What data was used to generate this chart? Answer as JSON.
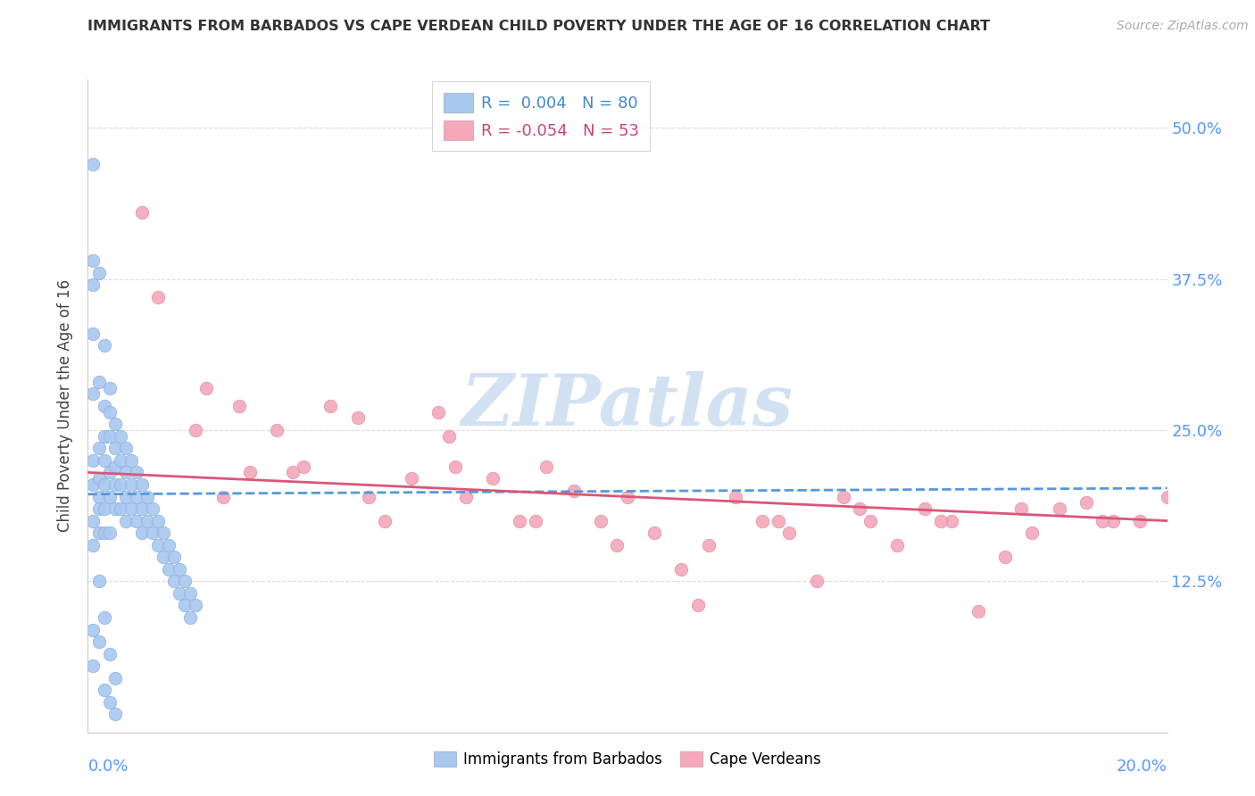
{
  "title": "IMMIGRANTS FROM BARBADOS VS CAPE VERDEAN CHILD POVERTY UNDER THE AGE OF 16 CORRELATION CHART",
  "source": "Source: ZipAtlas.com",
  "ylabel": "Child Poverty Under the Age of 16",
  "ytick_values": [
    0.0,
    0.125,
    0.25,
    0.375,
    0.5
  ],
  "ytick_labels": [
    "",
    "12.5%",
    "25.0%",
    "37.5%",
    "50.0%"
  ],
  "xlim": [
    0.0,
    0.2
  ],
  "ylim": [
    0.0,
    0.54
  ],
  "barbados_color": "#a8c8f0",
  "barbados_edge_color": "#88aadd",
  "cape_verde_color": "#f4a8b8",
  "cape_verde_edge_color": "#dd88aa",
  "barbados_line_color": "#5599dd",
  "cape_verde_line_color": "#dd5577",
  "barbados_R": 0.004,
  "barbados_N": 80,
  "cape_verde_R": -0.054,
  "cape_verde_N": 53,
  "watermark_color": "#ccddf0",
  "grid_color": "#cccccc",
  "title_color": "#333333",
  "source_color": "#aaaaaa",
  "tick_color": "#5599ff",
  "barbados_legend_color": "#4488cc",
  "cape_verde_legend_color": "#cc4477",
  "barbados_x": [
    0.001,
    0.001,
    0.001,
    0.001,
    0.001,
    0.001,
    0.001,
    0.001,
    0.001,
    0.002,
    0.002,
    0.002,
    0.002,
    0.002,
    0.002,
    0.002,
    0.003,
    0.003,
    0.003,
    0.003,
    0.003,
    0.003,
    0.003,
    0.004,
    0.004,
    0.004,
    0.004,
    0.004,
    0.004,
    0.005,
    0.005,
    0.005,
    0.005,
    0.005,
    0.006,
    0.006,
    0.006,
    0.006,
    0.007,
    0.007,
    0.007,
    0.007,
    0.008,
    0.008,
    0.008,
    0.009,
    0.009,
    0.009,
    0.01,
    0.01,
    0.01,
    0.011,
    0.011,
    0.012,
    0.012,
    0.013,
    0.013,
    0.014,
    0.014,
    0.015,
    0.015,
    0.016,
    0.016,
    0.017,
    0.017,
    0.018,
    0.018,
    0.019,
    0.019,
    0.02,
    0.001,
    0.002,
    0.003,
    0.004,
    0.005,
    0.001,
    0.002,
    0.003,
    0.004,
    0.005
  ],
  "barbados_y": [
    0.47,
    0.39,
    0.37,
    0.33,
    0.28,
    0.225,
    0.205,
    0.175,
    0.155,
    0.38,
    0.29,
    0.235,
    0.21,
    0.195,
    0.185,
    0.165,
    0.32,
    0.27,
    0.245,
    0.225,
    0.205,
    0.185,
    0.165,
    0.285,
    0.265,
    0.245,
    0.215,
    0.195,
    0.165,
    0.255,
    0.235,
    0.22,
    0.205,
    0.185,
    0.245,
    0.225,
    0.205,
    0.185,
    0.235,
    0.215,
    0.195,
    0.175,
    0.225,
    0.205,
    0.185,
    0.215,
    0.195,
    0.175,
    0.205,
    0.185,
    0.165,
    0.195,
    0.175,
    0.185,
    0.165,
    0.175,
    0.155,
    0.165,
    0.145,
    0.155,
    0.135,
    0.145,
    0.125,
    0.135,
    0.115,
    0.125,
    0.105,
    0.115,
    0.095,
    0.105,
    0.085,
    0.125,
    0.095,
    0.065,
    0.045,
    0.055,
    0.075,
    0.035,
    0.025,
    0.015
  ],
  "cape_verde_x": [
    0.01,
    0.013,
    0.02,
    0.022,
    0.028,
    0.03,
    0.035,
    0.04,
    0.045,
    0.05,
    0.055,
    0.06,
    0.065,
    0.068,
    0.07,
    0.075,
    0.08,
    0.085,
    0.09,
    0.095,
    0.1,
    0.105,
    0.11,
    0.115,
    0.12,
    0.125,
    0.13,
    0.135,
    0.14,
    0.145,
    0.15,
    0.155,
    0.16,
    0.165,
    0.17,
    0.175,
    0.18,
    0.185,
    0.19,
    0.195,
    0.2,
    0.025,
    0.038,
    0.052,
    0.067,
    0.083,
    0.098,
    0.113,
    0.128,
    0.143,
    0.158,
    0.173,
    0.188
  ],
  "cape_verde_y": [
    0.43,
    0.36,
    0.25,
    0.285,
    0.27,
    0.215,
    0.25,
    0.22,
    0.27,
    0.26,
    0.175,
    0.21,
    0.265,
    0.22,
    0.195,
    0.21,
    0.175,
    0.22,
    0.2,
    0.175,
    0.195,
    0.165,
    0.135,
    0.155,
    0.195,
    0.175,
    0.165,
    0.125,
    0.195,
    0.175,
    0.155,
    0.185,
    0.175,
    0.1,
    0.145,
    0.165,
    0.185,
    0.19,
    0.175,
    0.175,
    0.195,
    0.195,
    0.215,
    0.195,
    0.245,
    0.175,
    0.155,
    0.105,
    0.175,
    0.185,
    0.175,
    0.185,
    0.175
  ],
  "barbados_line_x": [
    0.0,
    0.2
  ],
  "barbados_line_y": [
    0.197,
    0.202
  ],
  "cape_verde_line_x": [
    0.0,
    0.2
  ],
  "cape_verde_line_y": [
    0.215,
    0.175
  ]
}
